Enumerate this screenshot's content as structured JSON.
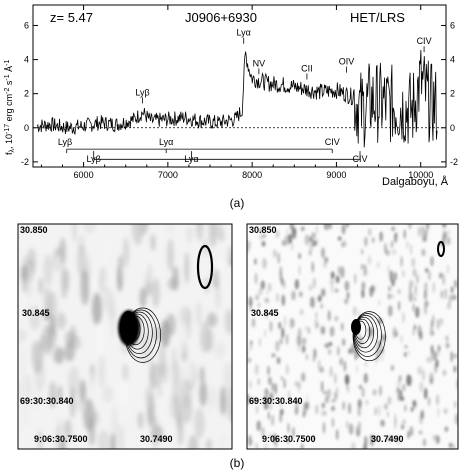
{
  "spectrum": {
    "header": {
      "redshift": "z= 5.47",
      "object": "J0906+6930",
      "instrument": "HET/LRS"
    },
    "y_label_part1": "f",
    "y_label_sub": "λ",
    "y_label_part2": ", 10",
    "y_label_exp": "-17",
    "y_label_part3": " erg cm",
    "y_label_exp2": "-2",
    "y_label_part4": " s",
    "y_label_exp3": "-1",
    "y_label_part5": " Å",
    "y_label_exp4": "-1",
    "x_label": "Dalgaboyu, Å",
    "chart_data": {
      "type": "line",
      "xlim": [
        5400,
        10300
      ],
      "ylim": [
        -2.3,
        7.2
      ],
      "x_ticks": [
        6000,
        7000,
        8000,
        9000,
        10000
      ],
      "y_ticks_left": [
        -2,
        0,
        2,
        4,
        6
      ],
      "y_ticks_right": [
        -2,
        0,
        2,
        4,
        6
      ],
      "zero_line": "dashed",
      "series": [
        {
          "x": [
            5450,
            5600,
            5800,
            6000,
            6200,
            6400,
            6600,
            6700,
            6800,
            7000,
            7200,
            7400,
            7600,
            7800,
            7880,
            7920,
            7960,
            8000,
            8200,
            8400,
            8600,
            8800,
            9000,
            9100,
            9200,
            9300,
            9400,
            9500,
            9600,
            9700,
            9800,
            9900,
            10000,
            10100,
            10200
          ],
          "y": [
            0.1,
            0.2,
            0.0,
            0.1,
            0.3,
            0.2,
            0.5,
            0.9,
            0.4,
            0.5,
            0.6,
            0.4,
            0.3,
            0.5,
            1.0,
            4.4,
            3.5,
            2.9,
            2.6,
            2.5,
            2.3,
            2.1,
            2.2,
            2.0,
            1.8,
            1.0,
            1.6,
            1.5,
            1.4,
            1.3,
            1.2,
            1.0,
            2.8,
            1.5,
            1.2
          ]
        }
      ],
      "emission_labels": [
        {
          "text": "Lyα",
          "x": 7900,
          "y": 5.4
        },
        {
          "text": "NV",
          "x": 8080,
          "y": 3.6
        },
        {
          "text": "CII",
          "x": 8650,
          "y": 3.3
        },
        {
          "text": "OIV",
          "x": 9120,
          "y": 3.7
        },
        {
          "text": "CIV",
          "x": 10040,
          "y": 4.9
        },
        {
          "text": "Lyβ",
          "x": 6700,
          "y": 1.9
        },
        {
          "text": "Lyβ",
          "x": 5780,
          "y": -1.0
        },
        {
          "text": "Lyα",
          "x": 6980,
          "y": -1.0
        },
        {
          "text": "CIV",
          "x": 8950,
          "y": -1.0
        },
        {
          "text": "Lyβ",
          "x": 6120,
          "y": -2.0
        },
        {
          "text": "Lyα",
          "x": 7280,
          "y": -2.0
        },
        {
          "text": "CIV",
          "x": 9280,
          "y": -2.0
        }
      ]
    }
  },
  "caption_a": "(a)",
  "images": [
    {
      "y_top": "30.850",
      "y_mid": "30.845",
      "y_bottom": "69:30:30.840",
      "x_left": "9:06:30.7500",
      "x_right": "30.7490"
    },
    {
      "y_top": "30.850",
      "y_mid": "30.845",
      "y_bottom": "69:30:30.840",
      "x_left": "9:06:30.7500",
      "x_right": "30.7490"
    }
  ],
  "caption_b": "(b)"
}
